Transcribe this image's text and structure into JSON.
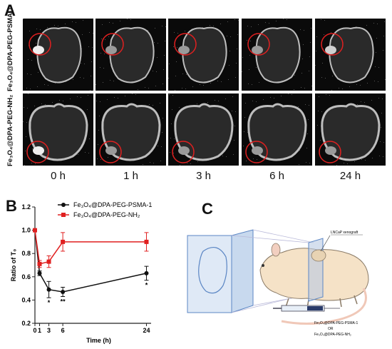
{
  "panel_a": {
    "letter": "A",
    "rows": [
      {
        "label": "Fe₃O₄@DPA-PEG-PSMA-1"
      },
      {
        "label": "Fe₃O₄@DPA-PEG-NH₂"
      }
    ],
    "time_labels": [
      "0 h",
      "1 h",
      "3 h",
      "6 h",
      "24 h"
    ]
  },
  "panel_b": {
    "letter": "B"
  },
  "panel_c": {
    "letter": "C",
    "labels": {
      "xenograft": "LNCaP  xenograft",
      "reagent1": "Fe₃O₄@DPA-PEG-PSMA-1",
      "or": "OR",
      "reagent2": "Fe₃O₄@DPA-PEG-NH₂"
    }
  },
  "colors": {
    "series1": "#111111",
    "series2": "#e02020",
    "circle": "#e02020"
  },
  "chart_data": {
    "type": "line",
    "xlabel": "Time (h)",
    "ylabel": "Ratio of T₀",
    "xlim": [
      0,
      25
    ],
    "ylim": [
      0.2,
      1.2
    ],
    "xticks": [
      0,
      1,
      3,
      6,
      24
    ],
    "yticks": [
      0.2,
      0.4,
      0.6,
      0.8,
      1.0,
      1.2
    ],
    "ytick_labels": [
      "0.2",
      "0.4",
      "0.6",
      "0.8",
      "1.0",
      "1.2"
    ],
    "legend_position": "top-right",
    "series": [
      {
        "name": "Fe₃O₄@DPA-PEG-PSMA-1",
        "color": "#111111",
        "marker": "circle",
        "x": [
          0,
          1,
          3,
          6,
          24
        ],
        "y": [
          1.0,
          0.63,
          0.49,
          0.47,
          0.63
        ],
        "err": [
          0,
          0.02,
          0.07,
          0.04,
          0.06
        ],
        "annotations": [
          "",
          "",
          "*",
          "**",
          "*"
        ]
      },
      {
        "name": "Fe₃O₄@DPA-PEG-NH₂",
        "color": "#e02020",
        "marker": "square",
        "x": [
          0,
          1,
          3,
          6,
          24
        ],
        "y": [
          1.0,
          0.71,
          0.73,
          0.9,
          0.9
        ],
        "err": [
          0,
          0.03,
          0.05,
          0.08,
          0.08
        ],
        "annotations": [
          "",
          "",
          "",
          "",
          ""
        ]
      }
    ]
  }
}
